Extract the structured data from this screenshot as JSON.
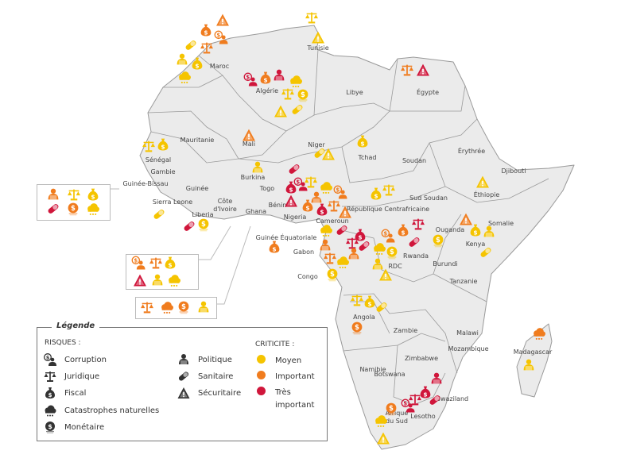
{
  "colors": {
    "moyen": "#f5c400",
    "important": "#f07c1e",
    "tres_important": "#d0163b",
    "land": "#ebebeb",
    "border": "#9a9a9a",
    "legend_icon": "#333333"
  },
  "countries": [
    "Maroc",
    "Tunisie",
    "Algérie",
    "Libye",
    "Égypte",
    "Mauritanie",
    "Mali",
    "Niger",
    "Tchad",
    "Soudan",
    "Érythrée",
    "Djibouti",
    "Sénégal",
    "Gambie",
    "Guinée-Bissau",
    "Guinée",
    "Sierra Leone",
    "Liberia",
    "Côte d'Ivoire",
    "Ghana",
    "Togo",
    "Bénin",
    "Burkina",
    "Nigeria",
    "Cameroun",
    "République Centrafricaine",
    "Sud Soudan",
    "Éthiopie",
    "Somalie",
    "Ouganda",
    "Kenya",
    "Guinée Équatoriale",
    "Gabon",
    "Congo",
    "RDC",
    "Rwanda",
    "Burundi",
    "Tanzanie",
    "Angola",
    "Zambie",
    "Malawi",
    "Mozambique",
    "Zimbabwe",
    "Namibie",
    "Botswana",
    "Madagascar",
    "Swaziland",
    "Afrique du Sud",
    "Lesotho"
  ],
  "markers": [
    {
      "country": "Maroc",
      "risk": "securitaire",
      "level": "important"
    },
    {
      "country": "Maroc",
      "risk": "fiscal",
      "level": "important"
    },
    {
      "country": "Maroc",
      "risk": "corruption",
      "level": "important"
    },
    {
      "country": "Maroc",
      "risk": "sanitaire",
      "level": "moyen"
    },
    {
      "country": "Maroc",
      "risk": "juridique",
      "level": "important"
    },
    {
      "country": "Maroc",
      "risk": "politique",
      "level": "moyen"
    },
    {
      "country": "Maroc",
      "risk": "fiscal",
      "level": "moyen"
    },
    {
      "country": "Maroc",
      "risk": "catastrophe",
      "level": "moyen"
    },
    {
      "country": "Tunisie",
      "risk": "juridique",
      "level": "moyen"
    },
    {
      "country": "Tunisie",
      "risk": "securitaire",
      "level": "moyen"
    },
    {
      "country": "Algérie",
      "risk": "corruption",
      "level": "tres_important"
    },
    {
      "country": "Algérie",
      "risk": "fiscal",
      "level": "important"
    },
    {
      "country": "Algérie",
      "risk": "politique",
      "level": "tres_important"
    },
    {
      "country": "Algérie",
      "risk": "catastrophe",
      "level": "moyen"
    },
    {
      "country": "Algérie",
      "risk": "juridique",
      "level": "moyen"
    },
    {
      "country": "Algérie",
      "risk": "monetaire",
      "level": "moyen"
    },
    {
      "country": "Algérie",
      "risk": "securitaire",
      "level": "moyen"
    },
    {
      "country": "Algérie",
      "risk": "sanitaire",
      "level": "moyen"
    },
    {
      "country": "Égypte",
      "risk": "juridique",
      "level": "important"
    },
    {
      "country": "Égypte",
      "risk": "securitaire",
      "level": "tres_important"
    },
    {
      "country": "Mali",
      "risk": "securitaire",
      "level": "important"
    },
    {
      "country": "Sénégal",
      "risk": "juridique",
      "level": "moyen"
    },
    {
      "country": "Sénégal",
      "risk": "fiscal",
      "level": "moyen"
    },
    {
      "country": "Niger",
      "risk": "sanitaire",
      "level": "moyen"
    },
    {
      "country": "Niger",
      "risk": "securitaire",
      "level": "moyen"
    },
    {
      "country": "Tchad",
      "risk": "fiscal",
      "level": "moyen"
    },
    {
      "country": "Burkina",
      "risk": "politique",
      "level": "moyen"
    },
    {
      "country": "Nigeria",
      "risk": "sanitaire",
      "level": "tres_important"
    },
    {
      "country": "Nigeria",
      "risk": "fiscal",
      "level": "tres_important"
    },
    {
      "country": "Nigeria",
      "risk": "corruption",
      "level": "tres_important"
    },
    {
      "country": "Nigeria",
      "risk": "juridique",
      "level": "moyen"
    },
    {
      "country": "Nigeria",
      "risk": "securitaire",
      "level": "tres_important"
    },
    {
      "country": "Nigeria",
      "risk": "fiscal",
      "level": "important"
    },
    {
      "country": "Nigeria",
      "risk": "politique",
      "level": "important"
    },
    {
      "country": "Nigeria",
      "risk": "catastrophe",
      "level": "moyen"
    },
    {
      "country": "Cameroun",
      "risk": "corruption",
      "level": "important"
    },
    {
      "country": "Cameroun",
      "risk": "juridique",
      "level": "important"
    },
    {
      "country": "Cameroun",
      "risk": "fiscal",
      "level": "tres_important"
    },
    {
      "country": "Cameroun",
      "risk": "securitaire",
      "level": "important"
    },
    {
      "country": "Cameroun",
      "risk": "sanitaire",
      "level": "tres_important"
    },
    {
      "country": "République Centrafricaine",
      "risk": "fiscal",
      "level": "moyen"
    },
    {
      "country": "République Centrafricaine",
      "risk": "juridique",
      "level": "moyen"
    },
    {
      "country": "Sierra Leone",
      "risk": "sanitaire",
      "level": "moyen"
    },
    {
      "country": "Liberia",
      "risk": "sanitaire",
      "level": "tres_important"
    },
    {
      "country": "Liberia",
      "risk": "monetaire",
      "level": "moyen"
    },
    {
      "country": "Guinée Équatoriale",
      "risk": "fiscal",
      "level": "important"
    },
    {
      "country": "Gabon",
      "risk": "catastrophe",
      "level": "moyen"
    },
    {
      "country": "Gabon",
      "risk": "politique",
      "level": "important"
    },
    {
      "country": "Gabon",
      "risk": "juridique",
      "level": "important"
    },
    {
      "country": "Congo",
      "risk": "catastrophe",
      "level": "moyen"
    },
    {
      "country": "Congo",
      "risk": "monetaire",
      "level": "moyen"
    },
    {
      "country": "Congo",
      "risk": "fiscal",
      "level": "tres_important"
    },
    {
      "country": "Congo",
      "risk": "juridique",
      "level": "tres_important"
    },
    {
      "country": "Congo",
      "risk": "sanitaire",
      "level": "tres_important"
    },
    {
      "country": "Congo",
      "risk": "politique",
      "level": "important"
    },
    {
      "country": "RDC",
      "risk": "corruption",
      "level": "important"
    },
    {
      "country": "RDC",
      "risk": "fiscal",
      "level": "important"
    },
    {
      "country": "RDC",
      "risk": "juridique",
      "level": "tres_important"
    },
    {
      "country": "RDC",
      "risk": "sanitaire",
      "level": "tres_important"
    },
    {
      "country": "RDC",
      "risk": "catastrophe",
      "level": "moyen"
    },
    {
      "country": "RDC",
      "risk": "monetaire",
      "level": "moyen"
    },
    {
      "country": "RDC",
      "risk": "politique",
      "level": "moyen"
    },
    {
      "country": "RDC",
      "risk": "securitaire",
      "level": "moyen"
    },
    {
      "country": "Ouganda",
      "risk": "securitaire",
      "level": "important"
    },
    {
      "country": "Ouganda",
      "risk": "monetaire",
      "level": "moyen"
    },
    {
      "country": "Kenya",
      "risk": "fiscal",
      "level": "moyen"
    },
    {
      "country": "Kenya",
      "risk": "politique",
      "level": "moyen"
    },
    {
      "country": "Kenya",
      "risk": "sanitaire",
      "level": "moyen"
    },
    {
      "country": "Éthiopie",
      "risk": "securitaire",
      "level": "moyen"
    },
    {
      "country": "Angola",
      "risk": "juridique",
      "level": "moyen"
    },
    {
      "country": "Angola",
      "risk": "fiscal",
      "level": "moyen"
    },
    {
      "country": "Angola",
      "risk": "sanitaire",
      "level": "moyen"
    },
    {
      "country": "Angola",
      "risk": "monetaire",
      "level": "important"
    },
    {
      "country": "Madagascar",
      "risk": "catastrophe",
      "level": "important"
    },
    {
      "country": "Madagascar",
      "risk": "politique",
      "level": "moyen"
    },
    {
      "country": "Swaziland",
      "risk": "politique",
      "level": "tres_important"
    },
    {
      "country": "Afrique du Sud",
      "risk": "fiscal",
      "level": "tres_important"
    },
    {
      "country": "Afrique du Sud",
      "risk": "juridique",
      "level": "tres_important"
    },
    {
      "country": "Afrique du Sud",
      "risk": "corruption",
      "level": "tres_important"
    },
    {
      "country": "Swaziland",
      "risk": "sanitaire",
      "level": "tres_important"
    },
    {
      "country": "Afrique du Sud",
      "risk": "monetaire",
      "level": "important"
    },
    {
      "country": "Afrique du Sud",
      "risk": "catastrophe",
      "level": "moyen"
    },
    {
      "country": "Afrique du Sud",
      "risk": "securitaire",
      "level": "moyen"
    },
    {
      "country": "Guinée-Bissau",
      "risk": "politique",
      "level": "important"
    },
    {
      "country": "Guinée-Bissau",
      "risk": "juridique",
      "level": "moyen"
    },
    {
      "country": "Guinée-Bissau",
      "risk": "fiscal",
      "level": "moyen"
    },
    {
      "country": "Guinée-Bissau",
      "risk": "sanitaire",
      "level": "tres_important"
    },
    {
      "country": "Guinée-Bissau",
      "risk": "monetaire",
      "level": "important"
    },
    {
      "country": "Guinée-Bissau",
      "risk": "catastrophe",
      "level": "moyen"
    },
    {
      "country": "Côte d'Ivoire",
      "risk": "corruption",
      "level": "important"
    },
    {
      "country": "Côte d'Ivoire",
      "risk": "juridique",
      "level": "important"
    },
    {
      "country": "Côte d'Ivoire",
      "risk": "fiscal",
      "level": "moyen"
    },
    {
      "country": "Côte d'Ivoire",
      "risk": "securitaire",
      "level": "tres_important"
    },
    {
      "country": "Côte d'Ivoire",
      "risk": "politique",
      "level": "moyen"
    },
    {
      "country": "Côte d'Ivoire",
      "risk": "catastrophe",
      "level": "moyen"
    },
    {
      "country": "Ghana",
      "risk": "juridique",
      "level": "important"
    },
    {
      "country": "Ghana",
      "risk": "catastrophe",
      "level": "important"
    },
    {
      "country": "Ghana",
      "risk": "monetaire",
      "level": "important"
    },
    {
      "country": "Ghana",
      "risk": "politique",
      "level": "moyen"
    }
  ],
  "legend": {
    "title": "Légende",
    "risques_header": "RISQUES :",
    "risques": [
      {
        "icon": "corruption",
        "label": "Corruption"
      },
      {
        "icon": "juridique",
        "label": "Juridique"
      },
      {
        "icon": "fiscal",
        "label": "Fiscal"
      },
      {
        "icon": "catastrophe",
        "label": "Catastrophes naturelles"
      },
      {
        "icon": "monetaire",
        "label": "Monétaire"
      },
      {
        "icon": "politique",
        "label": "Politique"
      },
      {
        "icon": "sanitaire",
        "label": "Sanitaire"
      },
      {
        "icon": "securitaire",
        "label": "Sécuritaire"
      }
    ],
    "criticite_header": "CRITICITE :",
    "criticite": [
      {
        "level": "moyen",
        "label": "Moyen"
      },
      {
        "level": "important",
        "label": "Important"
      },
      {
        "level": "tres_important",
        "label": "Très important"
      }
    ]
  }
}
